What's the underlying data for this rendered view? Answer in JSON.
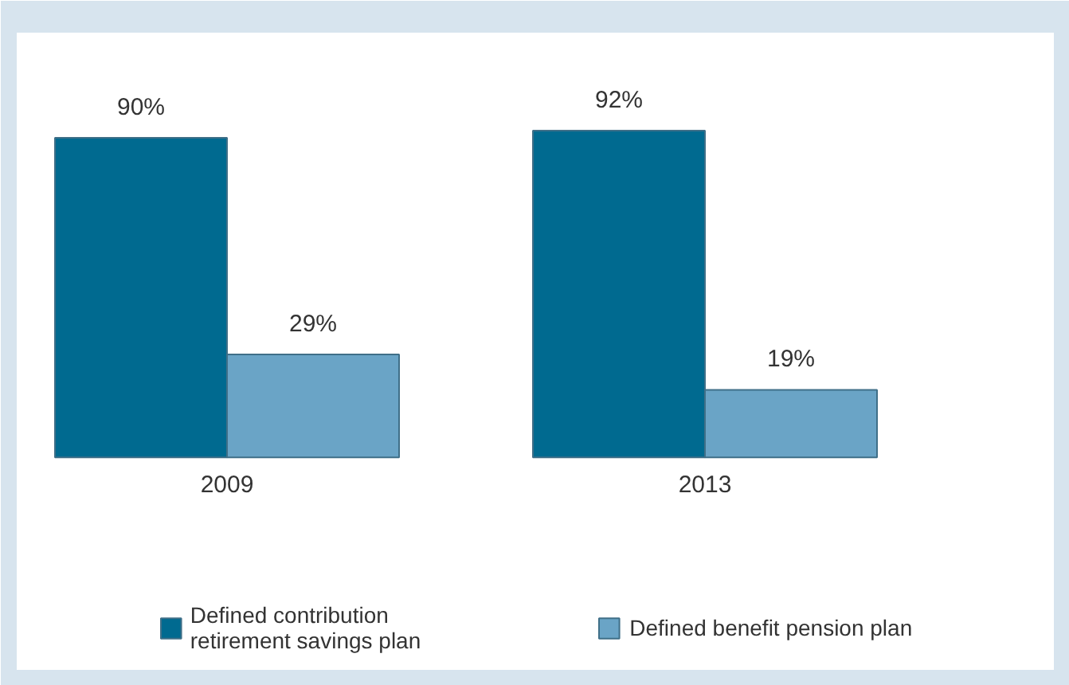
{
  "chart_data": {
    "type": "bar",
    "categories": [
      "2009",
      "2013"
    ],
    "series": [
      {
        "name": "Defined contribution\nretirement savings plan",
        "color": "#006a90",
        "values": [
          90,
          92
        ],
        "value_labels": [
          "90%",
          "92%"
        ]
      },
      {
        "name": "Defined benefit pension plan",
        "color": "#6aa4c6",
        "values": [
          29,
          19
        ],
        "value_labels": [
          "29%",
          "19%"
        ]
      }
    ],
    "legend": "bottom",
    "grid": false
  }
}
